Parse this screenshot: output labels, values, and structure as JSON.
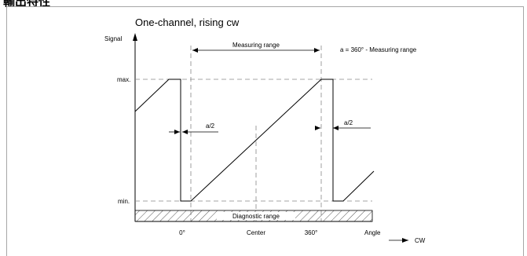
{
  "page_heading": "輸出特性",
  "diagram": {
    "title": "One-channel, rising cw",
    "y_axis_label": "Signal",
    "x_axis_label": "Angle",
    "direction_label": "CW",
    "level_labels": {
      "max": "max.",
      "min": "min."
    },
    "x_tick_labels": {
      "zero": "0°",
      "center": "Center",
      "full": "360°"
    },
    "annotations": {
      "measuring_range": "Measuring range",
      "a_definition": "a = 360° - Measuring range",
      "a_half_left": "a/2",
      "a_half_right": "a/2",
      "diagnostic_range": "Diagnostic range"
    },
    "colors": {
      "line": "#000000",
      "dashed": "#888888",
      "frame": "#a6a6a6"
    }
  }
}
